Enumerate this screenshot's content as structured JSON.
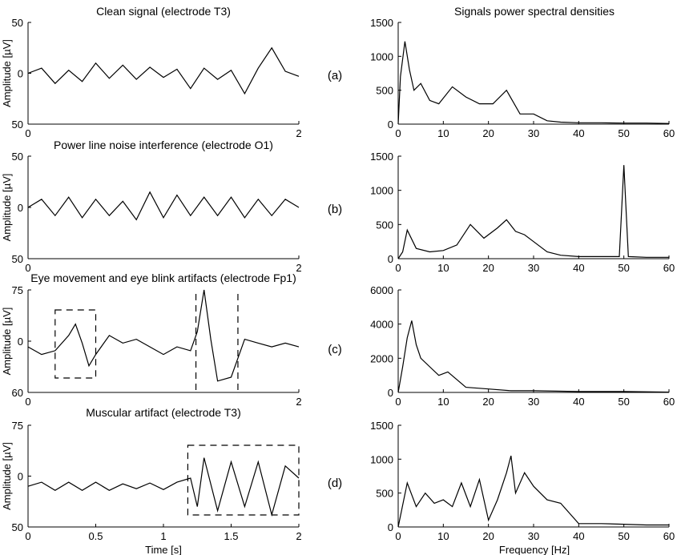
{
  "figure": {
    "right_title": "Signals power spectral densities",
    "time_xlabel": "Time [s]",
    "freq_xlabel": "Frequency [Hz]"
  },
  "chart_data": [
    {
      "type": "line",
      "panel": "a-time",
      "title": "Clean signal (electrode T3)",
      "xlabel": "",
      "ylabel": "Amplitude [µV]",
      "xlim": [
        0,
        2
      ],
      "ylim": [
        -50,
        50
      ],
      "x_ticks": [
        "0",
        "2"
      ],
      "y_ticks": [
        "50",
        "0",
        "50"
      ],
      "series": [
        {
          "x": [
            0,
            0.1,
            0.2,
            0.3,
            0.4,
            0.5,
            0.6,
            0.7,
            0.8,
            0.9,
            1.0,
            1.1,
            1.2,
            1.3,
            1.4,
            1.5,
            1.6,
            1.7,
            1.8,
            1.9,
            2.0
          ],
          "y": [
            0,
            5,
            -10,
            3,
            -8,
            10,
            -5,
            8,
            -6,
            6,
            -4,
            4,
            -15,
            5,
            -6,
            3,
            -20,
            5,
            25,
            2,
            -3
          ]
        }
      ]
    },
    {
      "type": "line",
      "panel": "a-psd",
      "title": "Signals power spectral densities",
      "xlabel": "",
      "ylabel": "",
      "xlim": [
        0,
        60
      ],
      "ylim": [
        0,
        1500
      ],
      "x_ticks": [
        "0",
        "10",
        "20",
        "30",
        "40",
        "50",
        "60"
      ],
      "y_ticks": [
        "0",
        "500",
        "1000",
        "1500"
      ],
      "series": [
        {
          "x": [
            0,
            0.5,
            1.5,
            2.5,
            3.5,
            5,
            7,
            9,
            12,
            15,
            18,
            21,
            24,
            27,
            30,
            33,
            36,
            40,
            45,
            50,
            55,
            60
          ],
          "y": [
            0,
            700,
            1220,
            800,
            500,
            600,
            350,
            300,
            550,
            400,
            300,
            300,
            500,
            150,
            150,
            50,
            30,
            20,
            20,
            15,
            15,
            10
          ]
        }
      ]
    },
    {
      "type": "line",
      "panel": "b-time",
      "title": "Power line noise interference (electrode O1)",
      "xlabel": "",
      "ylabel": "Amplitude [µV]",
      "xlim": [
        0,
        2
      ],
      "ylim": [
        -50,
        50
      ],
      "x_ticks": [
        "0",
        "2"
      ],
      "y_ticks": [
        "50",
        "0",
        "50"
      ],
      "series": [
        {
          "x": [
            0,
            0.1,
            0.2,
            0.3,
            0.4,
            0.5,
            0.6,
            0.7,
            0.8,
            0.9,
            1.0,
            1.1,
            1.2,
            1.3,
            1.4,
            1.5,
            1.6,
            1.7,
            1.8,
            1.9,
            2.0
          ],
          "y": [
            0,
            8,
            -8,
            10,
            -10,
            8,
            -8,
            6,
            -12,
            15,
            -10,
            12,
            -8,
            10,
            -8,
            10,
            -10,
            8,
            -8,
            8,
            0
          ]
        }
      ]
    },
    {
      "type": "line",
      "panel": "b-psd",
      "title": "",
      "xlabel": "",
      "ylabel": "",
      "xlim": [
        0,
        60
      ],
      "ylim": [
        0,
        1500
      ],
      "x_ticks": [
        "0",
        "10",
        "20",
        "30",
        "40",
        "50",
        "60"
      ],
      "y_ticks": [
        "0",
        "500",
        "1000",
        "1500"
      ],
      "series": [
        {
          "x": [
            0,
            1,
            2,
            4,
            7,
            10,
            13,
            16,
            19,
            22,
            24,
            26,
            28,
            30,
            33,
            36,
            40,
            45,
            49,
            50,
            51,
            55,
            60
          ],
          "y": [
            0,
            100,
            420,
            150,
            100,
            120,
            200,
            500,
            300,
            450,
            570,
            400,
            350,
            250,
            100,
            50,
            30,
            30,
            30,
            1370,
            30,
            20,
            20
          ]
        }
      ]
    },
    {
      "type": "line",
      "panel": "c-time",
      "title": "Eye movement and eye blink artifacts (electrode Fp1)",
      "xlabel": "",
      "ylabel": "Amplitude [µV]",
      "xlim": [
        0,
        2
      ],
      "ylim": [
        -60,
        75
      ],
      "x_ticks": [
        "0",
        "2"
      ],
      "y_ticks": [
        "75",
        "0",
        "60"
      ],
      "annotations": [
        "dashed box around eye movement",
        "dashed lines around eye blink"
      ],
      "series": [
        {
          "x": [
            0,
            0.1,
            0.2,
            0.3,
            0.35,
            0.4,
            0.45,
            0.5,
            0.6,
            0.7,
            0.8,
            0.9,
            1.0,
            1.1,
            1.2,
            1.25,
            1.3,
            1.35,
            1.4,
            1.5,
            1.6,
            1.7,
            1.8,
            1.9,
            2.0
          ],
          "y": [
            0,
            -10,
            -5,
            15,
            30,
            5,
            -25,
            -10,
            15,
            5,
            10,
            0,
            -10,
            0,
            -5,
            20,
            78,
            10,
            -45,
            -40,
            10,
            5,
            0,
            5,
            0
          ]
        }
      ]
    },
    {
      "type": "line",
      "panel": "c-psd",
      "title": "",
      "xlabel": "",
      "ylabel": "",
      "xlim": [
        0,
        60
      ],
      "ylim": [
        0,
        6000
      ],
      "x_ticks": [
        "0",
        "10",
        "20",
        "30",
        "40",
        "50",
        "60"
      ],
      "y_ticks": [
        "0",
        "2000",
        "4000",
        "6000"
      ],
      "series": [
        {
          "x": [
            0,
            1,
            2,
            3,
            4,
            5,
            7,
            9,
            11,
            15,
            20,
            25,
            30,
            40,
            50,
            60
          ],
          "y": [
            0,
            1500,
            3200,
            4200,
            2800,
            2000,
            1500,
            1000,
            1200,
            300,
            200,
            100,
            100,
            50,
            50,
            20
          ]
        }
      ]
    },
    {
      "type": "line",
      "panel": "d-time",
      "title": "Muscular artifact (electrode T3)",
      "xlabel": "Time [s]",
      "ylabel": "Amplitude [µV]",
      "xlim": [
        0,
        2
      ],
      "ylim": [
        -50,
        75
      ],
      "x_ticks": [
        "0",
        "0.5",
        "1",
        "1.5",
        "2"
      ],
      "y_ticks": [
        "75",
        "0",
        "50"
      ],
      "annotations": [
        "dashed box around muscular artifact"
      ],
      "series": [
        {
          "x": [
            0,
            0.1,
            0.2,
            0.3,
            0.4,
            0.5,
            0.6,
            0.7,
            0.8,
            0.9,
            1.0,
            1.1,
            1.2,
            1.25,
            1.3,
            1.4,
            1.5,
            1.6,
            1.7,
            1.8,
            1.9,
            2.0
          ],
          "y": [
            0,
            5,
            -5,
            5,
            -5,
            5,
            -5,
            3,
            -3,
            4,
            -4,
            5,
            10,
            -25,
            35,
            -30,
            30,
            -25,
            30,
            -35,
            25,
            10
          ]
        }
      ]
    },
    {
      "type": "line",
      "panel": "d-psd",
      "title": "",
      "xlabel": "Frequency [Hz]",
      "ylabel": "",
      "xlim": [
        0,
        60
      ],
      "ylim": [
        0,
        1500
      ],
      "x_ticks": [
        "0",
        "10",
        "20",
        "30",
        "40",
        "50",
        "60"
      ],
      "y_ticks": [
        "0",
        "500",
        "1000",
        "1500"
      ],
      "series": [
        {
          "x": [
            0,
            2,
            4,
            6,
            8,
            10,
            12,
            14,
            16,
            18,
            20,
            22,
            24,
            25,
            26,
            28,
            30,
            33,
            36,
            38,
            40,
            45,
            50,
            55,
            60
          ],
          "y": [
            0,
            650,
            300,
            500,
            350,
            400,
            300,
            650,
            300,
            700,
            100,
            400,
            800,
            1050,
            500,
            800,
            600,
            400,
            350,
            200,
            50,
            50,
            40,
            30,
            30
          ]
        }
      ]
    }
  ],
  "panel_labels": [
    "(a)",
    "(b)",
    "(c)",
    "(d)"
  ]
}
